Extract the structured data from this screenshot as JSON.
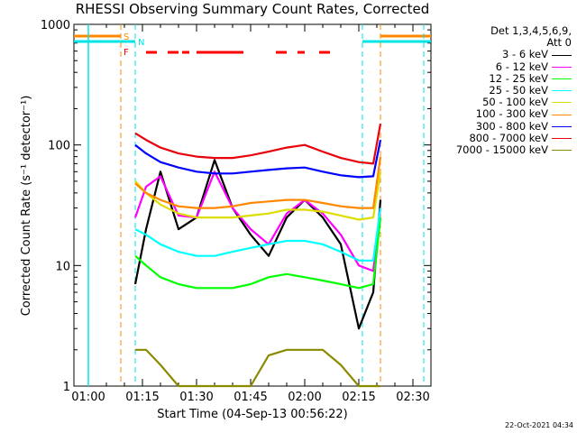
{
  "title": "RHESSI Observing Summary Count Rates, Corrected",
  "footer_date": "22-Oct-2021 04:34",
  "legend": {
    "header_line1": "Det 1,3,4,5,6,9,",
    "header_line2": "Att 0"
  },
  "flags": {
    "saa_label": "S",
    "night_label": "N",
    "flare_label": "F"
  },
  "colors": {
    "saa": "#ff8800",
    "night": "#00e5e5",
    "flare": "#ff0000"
  },
  "chart_data": {
    "type": "line",
    "title": "RHESSI Observing Summary Count Rates, Corrected",
    "xlabel": "Start Time (04-Sep-13 00:56:22)",
    "ylabel": "Corrected Count Rate (s⁻¹ detector⁻¹)",
    "yscale": "log",
    "ylim": [
      1,
      1000
    ],
    "xlim": [
      "00:56",
      "02:35"
    ],
    "x_ticks": [
      "01:00",
      "01:15",
      "01:30",
      "01:45",
      "02:00",
      "02:15",
      "02:30"
    ],
    "y_ticks": [
      "1",
      "10",
      "100",
      "1000"
    ],
    "x": [
      "01:13",
      "01:16",
      "01:20",
      "01:25",
      "01:30",
      "01:35",
      "01:40",
      "01:45",
      "01:50",
      "01:55",
      "02:00",
      "02:05",
      "02:10",
      "02:15",
      "02:19",
      "02:21"
    ],
    "series": [
      {
        "name": "3 - 6 keV",
        "color": "#000000",
        "values": [
          7,
          20,
          60,
          20,
          25,
          75,
          30,
          18,
          12,
          25,
          35,
          25,
          15,
          3,
          6,
          35
        ]
      },
      {
        "name": "6 - 12 keV",
        "color": "#ff00ff",
        "values": [
          25,
          45,
          55,
          26,
          25,
          60,
          30,
          20,
          15,
          27,
          35,
          27,
          18,
          10,
          9,
          30
        ]
      },
      {
        "name": "12 - 25 keV",
        "color": "#00ff00",
        "values": [
          12,
          10,
          8,
          7,
          6.5,
          6.5,
          6.5,
          7,
          8,
          8.5,
          8,
          7.5,
          7,
          6.5,
          7,
          25
        ]
      },
      {
        "name": "25 - 50 keV",
        "color": "#00ffff",
        "values": [
          20,
          18,
          15,
          13,
          12,
          12,
          13,
          14,
          15,
          16,
          16,
          15,
          13,
          11,
          11,
          30
        ]
      },
      {
        "name": "50 - 100 keV",
        "color": "#dddd00",
        "values": [
          50,
          40,
          32,
          27,
          25,
          25,
          25,
          26,
          27,
          29,
          29,
          28,
          26,
          24,
          25,
          60
        ]
      },
      {
        "name": "100 - 300 keV",
        "color": "#ff8800",
        "values": [
          48,
          40,
          35,
          31,
          30,
          30,
          31,
          33,
          34,
          35,
          35,
          33,
          31,
          30,
          30,
          80
        ]
      },
      {
        "name": "300 - 800 keV",
        "color": "#0000ff",
        "values": [
          100,
          85,
          72,
          65,
          60,
          58,
          58,
          60,
          62,
          64,
          65,
          60,
          56,
          54,
          55,
          110
        ]
      },
      {
        "name": "800 - 7000 keV",
        "color": "#e8000b",
        "values": [
          125,
          110,
          95,
          85,
          80,
          78,
          78,
          82,
          88,
          95,
          100,
          88,
          78,
          72,
          70,
          150
        ]
      },
      {
        "name": "7000 - 15000 keV",
        "color": "#8a8a00",
        "values": [
          2,
          2,
          1.5,
          1,
          1,
          1,
          1,
          1,
          1.8,
          2,
          2,
          2,
          1.5,
          1,
          1,
          1
        ]
      }
    ]
  }
}
